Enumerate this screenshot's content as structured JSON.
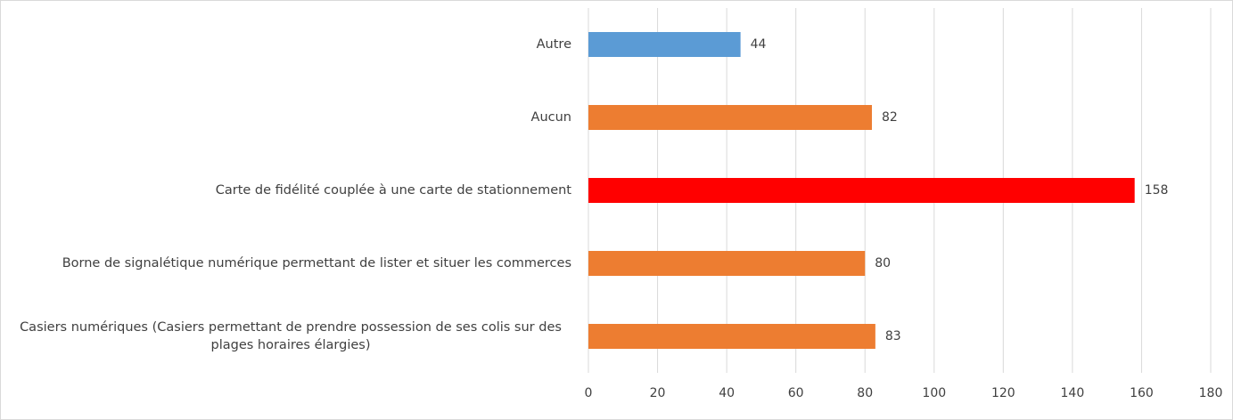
{
  "chart_data": {
    "type": "hbar",
    "categories": [
      "Autre",
      "Aucun",
      "Carte de fidélité couplée à une carte de stationnement",
      "Borne de signalétique numérique permettant de lister et situer les commerces",
      "Casiers numériques (Casiers permettant de prendre possession de ses colis sur des plages horaires élargies)"
    ],
    "values": [
      44,
      82,
      158,
      80,
      83
    ],
    "colors": [
      "#5b9bd5",
      "#ed7d31",
      "#ff0000",
      "#ed7d31",
      "#ed7d31"
    ],
    "xlim": [
      0,
      180
    ],
    "xticks": [
      0,
      20,
      40,
      60,
      80,
      100,
      120,
      140,
      160,
      180
    ],
    "grid": true
  }
}
